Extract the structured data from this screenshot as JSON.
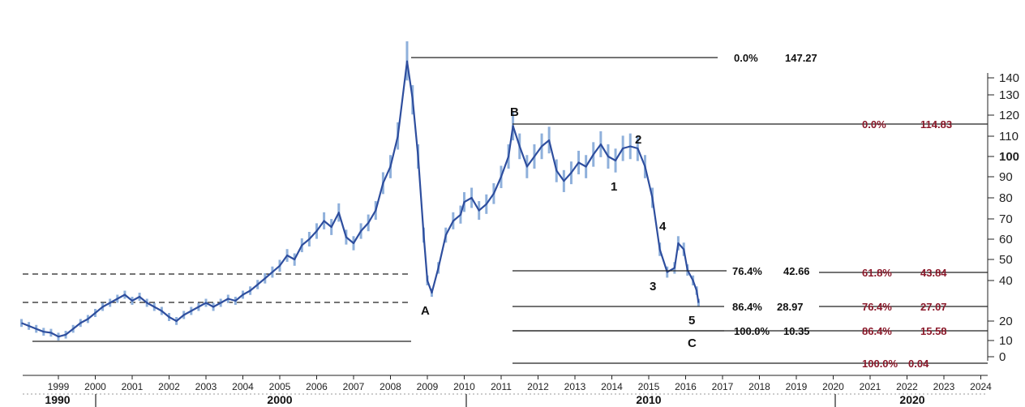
{
  "chart_data": {
    "type": "line",
    "title": "",
    "xlabel": "",
    "ylabel": "",
    "x_ticks": [
      "1999",
      "2000",
      "2001",
      "2002",
      "2003",
      "2004",
      "2005",
      "2006",
      "2007",
      "2008",
      "2009",
      "2010",
      "2011",
      "2012",
      "2013",
      "2014",
      "2015",
      "2016",
      "2017",
      "2018",
      "2019",
      "2020",
      "2021",
      "2022",
      "2023",
      "2024"
    ],
    "decade_labels": [
      "1990",
      "2000",
      "2010",
      "2020"
    ],
    "y_ticks": [
      "0",
      "10",
      "20",
      "40",
      "50",
      "60",
      "70",
      "80",
      "90",
      "100",
      "110",
      "120",
      "130",
      "140"
    ],
    "y_scale": "log",
    "series": [
      {
        "values": [
          [
            1998.0,
            19
          ],
          [
            1998.2,
            17.5
          ],
          [
            1998.4,
            16
          ],
          [
            1998.6,
            14.5
          ],
          [
            1998.8,
            14
          ],
          [
            1999.0,
            12
          ],
          [
            1999.2,
            13
          ],
          [
            1999.4,
            16
          ],
          [
            1999.6,
            19
          ],
          [
            1999.8,
            21
          ],
          [
            2000.0,
            24
          ],
          [
            2000.2,
            27
          ],
          [
            2000.4,
            29
          ],
          [
            2000.6,
            31
          ],
          [
            2000.8,
            33
          ],
          [
            2001.0,
            30
          ],
          [
            2001.2,
            32
          ],
          [
            2001.4,
            29
          ],
          [
            2001.6,
            27
          ],
          [
            2001.8,
            25
          ],
          [
            2002.0,
            22
          ],
          [
            2002.2,
            20
          ],
          [
            2002.4,
            23
          ],
          [
            2002.6,
            25
          ],
          [
            2002.8,
            27
          ],
          [
            2003.0,
            29
          ],
          [
            2003.2,
            27
          ],
          [
            2003.4,
            29
          ],
          [
            2003.6,
            31
          ],
          [
            2003.8,
            30
          ],
          [
            2004.0,
            33
          ],
          [
            2004.2,
            35
          ],
          [
            2004.4,
            38
          ],
          [
            2004.6,
            41
          ],
          [
            2004.8,
            44
          ],
          [
            2005.0,
            47
          ],
          [
            2005.2,
            52
          ],
          [
            2005.4,
            50
          ],
          [
            2005.6,
            57
          ],
          [
            2005.8,
            60
          ],
          [
            2006.0,
            64
          ],
          [
            2006.2,
            69
          ],
          [
            2006.4,
            66
          ],
          [
            2006.6,
            73
          ],
          [
            2006.8,
            61
          ],
          [
            2007.0,
            58
          ],
          [
            2007.2,
            64
          ],
          [
            2007.4,
            68
          ],
          [
            2007.6,
            74
          ],
          [
            2007.8,
            87
          ],
          [
            2008.0,
            95
          ],
          [
            2008.2,
            110
          ],
          [
            2008.45,
            147.27
          ],
          [
            2008.6,
            128
          ],
          [
            2008.75,
            100
          ],
          [
            2008.9,
            62
          ],
          [
            2009.0,
            40
          ],
          [
            2009.12,
            34
          ],
          [
            2009.3,
            46
          ],
          [
            2009.5,
            62
          ],
          [
            2009.7,
            69
          ],
          [
            2009.9,
            72
          ],
          [
            2010.0,
            78
          ],
          [
            2010.2,
            80
          ],
          [
            2010.4,
            74
          ],
          [
            2010.6,
            77
          ],
          [
            2010.8,
            82
          ],
          [
            2011.0,
            90
          ],
          [
            2011.2,
            100
          ],
          [
            2011.32,
            114.83
          ],
          [
            2011.5,
            105
          ],
          [
            2011.7,
            95
          ],
          [
            2011.9,
            100
          ],
          [
            2012.1,
            105
          ],
          [
            2012.3,
            108
          ],
          [
            2012.5,
            93
          ],
          [
            2012.7,
            88
          ],
          [
            2012.9,
            92
          ],
          [
            2013.1,
            97
          ],
          [
            2013.3,
            95
          ],
          [
            2013.5,
            101
          ],
          [
            2013.7,
            106
          ],
          [
            2013.9,
            100
          ],
          [
            2014.1,
            98
          ],
          [
            2014.3,
            104
          ],
          [
            2014.5,
            105
          ],
          [
            2014.7,
            104
          ],
          [
            2014.9,
            95
          ],
          [
            2015.1,
            80
          ],
          [
            2015.3,
            55
          ],
          [
            2015.5,
            44
          ],
          [
            2015.7,
            46
          ],
          [
            2015.8,
            58
          ],
          [
            2015.95,
            55
          ],
          [
            2016.05,
            45
          ],
          [
            2016.2,
            40
          ],
          [
            2016.3,
            35
          ],
          [
            2016.35,
            28.97
          ]
        ]
      }
    ],
    "fib_levels_black": [
      {
        "label": "0.0%",
        "value": "147.27"
      },
      {
        "label": "76.4%",
        "value": "42.66"
      },
      {
        "label": "86.4%",
        "value": "28.97"
      },
      {
        "label": "100.0%",
        "value": "10.35"
      }
    ],
    "fib_levels_red": [
      {
        "label": "0.0%",
        "value": "114.83"
      },
      {
        "label": "61.8%",
        "value": "43.84"
      },
      {
        "label": "76.4%",
        "value": "27.07"
      },
      {
        "label": "86.4%",
        "value": "15.58"
      },
      {
        "label": "100.0%",
        "value": "0.04"
      }
    ],
    "wave_labels": [
      "A",
      "B",
      "C",
      "1",
      "2",
      "3",
      "4",
      "5"
    ],
    "colors": {
      "price": "#2e4e9e",
      "price_light": "#8fb0db",
      "fib_red": "#8b1a2b",
      "lines": "#222222"
    }
  }
}
